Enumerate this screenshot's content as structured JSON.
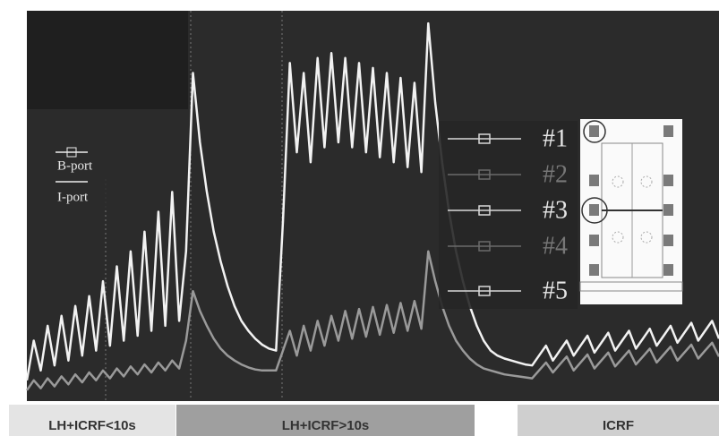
{
  "chart_data": {
    "type": "line",
    "x": [
      0,
      1,
      2,
      3,
      4,
      5,
      6,
      7,
      8,
      9,
      10,
      11,
      12,
      13,
      14,
      15,
      16,
      17,
      18,
      19,
      20,
      21,
      22,
      23,
      24,
      25,
      26,
      27,
      28,
      29,
      30,
      31,
      32,
      33,
      34,
      35,
      36,
      37,
      38,
      39,
      40,
      41,
      42,
      43,
      44,
      45,
      46,
      47,
      48,
      49,
      50,
      51,
      52,
      53,
      54,
      55,
      56,
      57,
      58,
      59,
      60,
      61,
      62,
      63,
      64,
      65,
      66,
      67,
      68,
      69,
      70,
      71,
      72,
      73,
      74,
      75,
      76,
      77,
      78,
      79,
      80,
      81,
      82,
      83,
      84,
      85,
      86,
      87,
      88,
      89,
      90,
      91,
      92,
      93,
      94,
      95,
      96,
      97,
      98,
      99,
      100
    ],
    "xlim": [
      0,
      100
    ],
    "ylim": [
      0,
      390
    ],
    "series": [
      {
        "name": "B-port",
        "color": "#f2f2f2",
        "values": [
          20,
          60,
          30,
          75,
          35,
          85,
          40,
          95,
          45,
          105,
          50,
          120,
          55,
          135,
          60,
          150,
          65,
          170,
          70,
          190,
          75,
          210,
          80,
          150,
          330,
          260,
          210,
          170,
          140,
          115,
          95,
          80,
          70,
          62,
          56,
          52,
          50,
          180,
          340,
          250,
          330,
          240,
          345,
          255,
          350,
          260,
          345,
          255,
          340,
          250,
          335,
          245,
          330,
          240,
          325,
          235,
          320,
          230,
          380,
          300,
          240,
          190,
          150,
          120,
          95,
          75,
          60,
          50,
          45,
          42,
          40,
          38,
          36,
          35,
          45,
          55,
          40,
          50,
          60,
          45,
          55,
          65,
          48,
          58,
          68,
          50,
          60,
          70,
          52,
          62,
          72,
          55,
          65,
          75,
          58,
          68,
          78,
          60,
          70,
          80,
          62
        ]
      },
      {
        "name": "I-port",
        "color": "#9a9a9a",
        "values": [
          10,
          20,
          12,
          22,
          14,
          24,
          16,
          26,
          18,
          28,
          20,
          30,
          22,
          32,
          24,
          34,
          26,
          36,
          28,
          38,
          30,
          40,
          32,
          60,
          110,
          90,
          75,
          62,
          52,
          45,
          40,
          36,
          33,
          31,
          30,
          30,
          30,
          50,
          70,
          45,
          75,
          50,
          80,
          55,
          85,
          60,
          90,
          62,
          92,
          64,
          94,
          66,
          96,
          68,
          98,
          70,
          100,
          72,
          150,
          120,
          95,
          75,
          60,
          50,
          42,
          36,
          32,
          30,
          28,
          26,
          25,
          24,
          23,
          22,
          30,
          38,
          28,
          36,
          44,
          30,
          38,
          46,
          32,
          40,
          48,
          34,
          42,
          50,
          36,
          44,
          52,
          38,
          46,
          54,
          40,
          48,
          56,
          42,
          50,
          58,
          44
        ]
      }
    ],
    "ports": [
      "#1",
      "#2",
      "#3",
      "#4",
      "#5"
    ],
    "phases": [
      "LH+ICRF<10s",
      "LH+ICRF>10s",
      "ICRF"
    ]
  }
}
